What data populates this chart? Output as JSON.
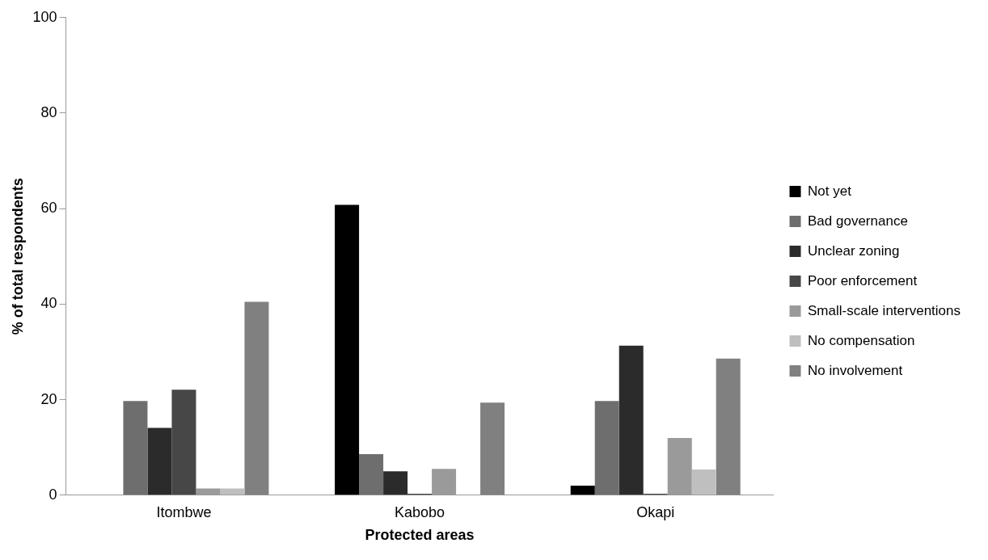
{
  "chart_data": {
    "type": "bar",
    "xlabel": "Protected areas",
    "ylabel": "% of total respondents",
    "categories": [
      "Itombwe",
      "Kabobo",
      "Okapi"
    ],
    "series": [
      {
        "name": "Not yet",
        "color": "#000000",
        "values": [
          0,
          60.8,
          2.0
        ]
      },
      {
        "name": "Bad governance",
        "color": "#6e6e6e",
        "values": [
          19.7,
          8.6,
          19.7
        ]
      },
      {
        "name": "Unclear zoning",
        "color": "#2b2b2b",
        "values": [
          14.1,
          5.0,
          31.3
        ]
      },
      {
        "name": "Poor enforcement",
        "color": "#474747",
        "values": [
          22.1,
          0.3,
          0.3
        ]
      },
      {
        "name": "Small-scale interventions",
        "color": "#9a9a9a",
        "values": [
          1.4,
          5.5,
          12.0
        ]
      },
      {
        "name": "No compensation",
        "color": "#bfbfbf",
        "values": [
          1.4,
          0,
          5.4
        ]
      },
      {
        "name": "No involvement",
        "color": "#808080",
        "values": [
          40.5,
          19.4,
          28.6
        ]
      }
    ],
    "ylim": [
      0,
      100
    ],
    "yticks": [
      0,
      20,
      40,
      60,
      80,
      100
    ],
    "grid": false,
    "legend": "right"
  }
}
